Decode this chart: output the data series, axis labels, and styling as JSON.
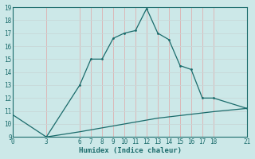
{
  "xlabel": "Humidex (Indice chaleur)",
  "bg_color": "#cce8e8",
  "grid_color_v": "#ddb0b0",
  "grid_color_h": "#c8d8d8",
  "line_color": "#1a6b6b",
  "xlim": [
    0,
    21
  ],
  "ylim": [
    9,
    19
  ],
  "xticks": [
    0,
    3,
    6,
    7,
    8,
    9,
    10,
    11,
    12,
    13,
    14,
    15,
    16,
    17,
    18,
    21
  ],
  "yticks": [
    9,
    10,
    11,
    12,
    13,
    14,
    15,
    16,
    17,
    18,
    19
  ],
  "curve1_x": [
    3,
    6,
    7,
    8,
    9,
    10,
    11,
    12,
    13,
    14,
    15,
    16,
    17,
    18,
    21
  ],
  "curve1_y": [
    9.0,
    13.0,
    15.0,
    15.0,
    16.6,
    17.0,
    17.2,
    18.9,
    17.0,
    16.5,
    14.5,
    14.2,
    12.0,
    12.0,
    11.2
  ],
  "curve2_x": [
    0,
    3,
    6,
    7,
    8,
    9,
    10,
    11,
    12,
    13,
    14,
    15,
    16,
    17,
    18,
    21
  ],
  "curve2_y": [
    10.7,
    9.0,
    9.4,
    9.55,
    9.7,
    9.85,
    10.0,
    10.15,
    10.3,
    10.45,
    10.55,
    10.65,
    10.75,
    10.85,
    10.95,
    11.2
  ]
}
